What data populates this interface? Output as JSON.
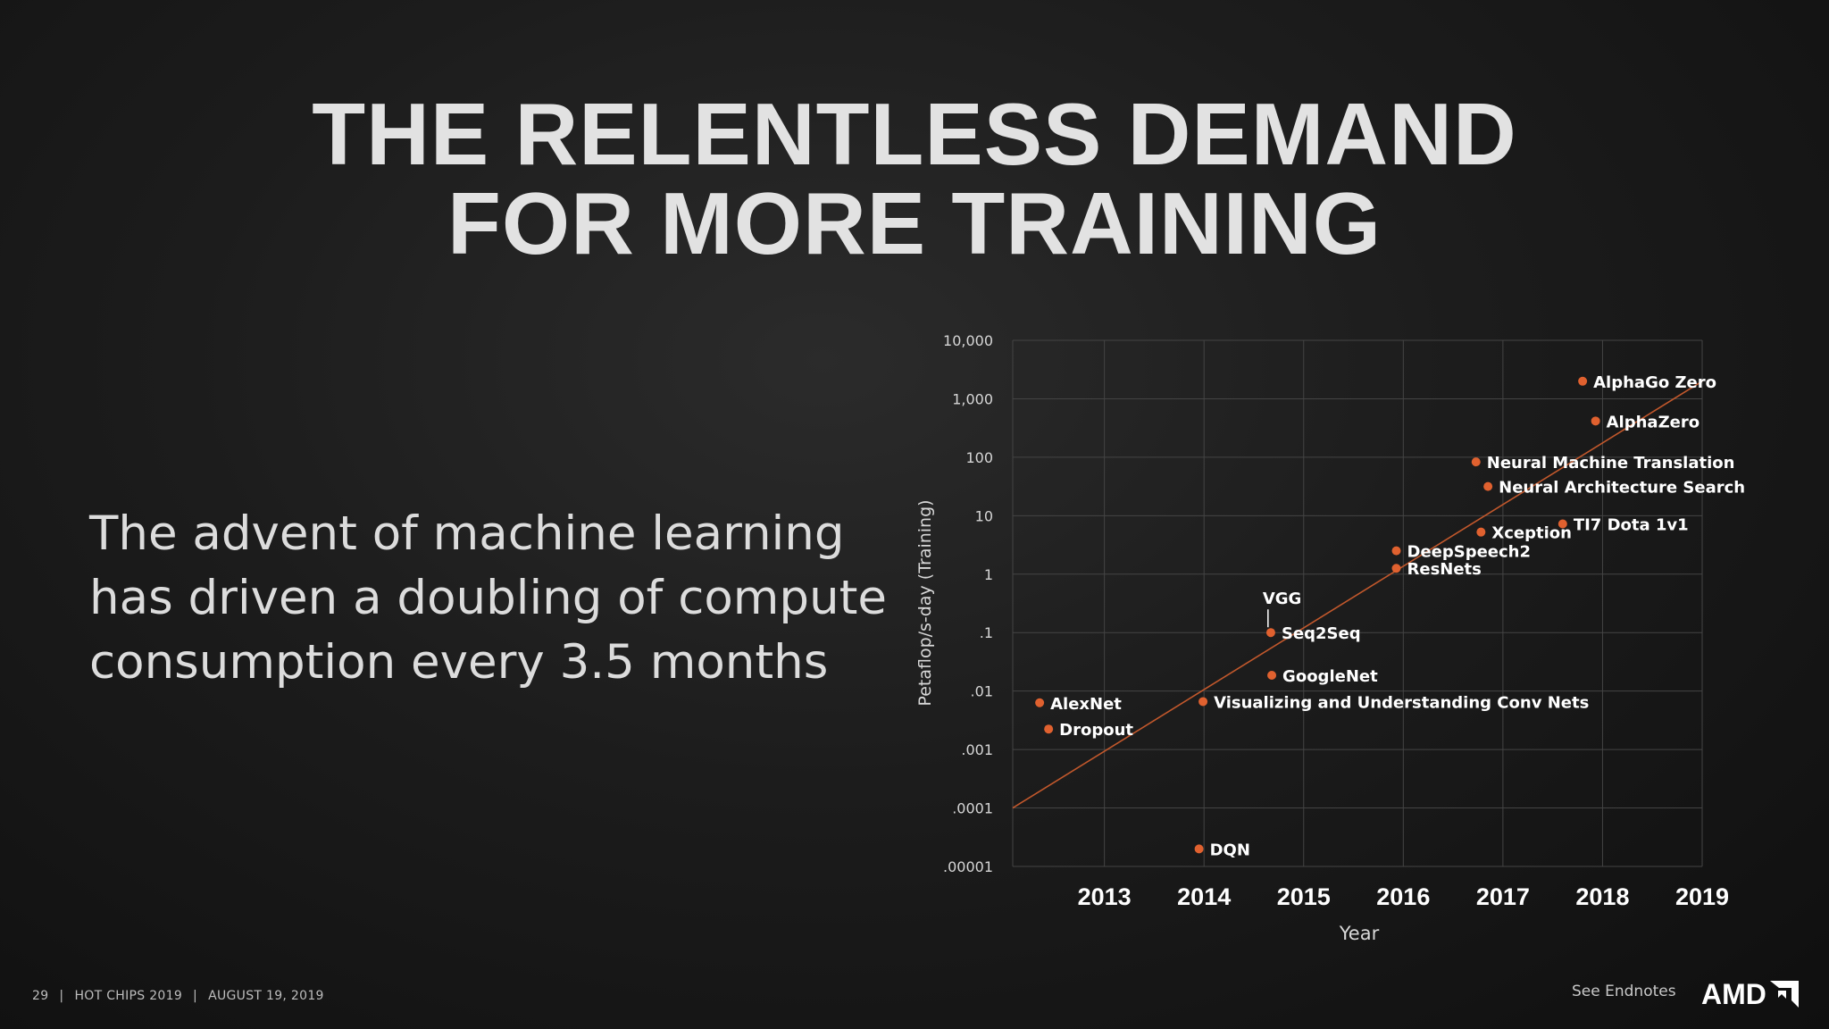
{
  "slide": {
    "title_line1": "THE RELENTLESS DEMAND",
    "title_line2": "FOR MORE TRAINING",
    "body_lines": [
      "The advent of machine learning",
      "has driven a doubling of compute",
      "consumption every 3.5 months"
    ]
  },
  "footer": {
    "page_number": "29",
    "event": "HOT CHIPS 2019",
    "date": "AUGUST 19, 2019",
    "separator": "|",
    "endnotes": "See Endnotes",
    "logo_text": "AMD"
  },
  "colors": {
    "point": "#e0612f",
    "trend": "#c2582c",
    "grid": "#444444",
    "title": "#e2e2e2"
  },
  "chart_data": {
    "type": "scatter",
    "title": "",
    "xlabel": "Year",
    "ylabel": "Petaflop/s-day (Training)",
    "y_scale": "log",
    "xlim": [
      2012.08,
      2019
    ],
    "ylim_exponent": [
      -5,
      4
    ],
    "x_ticks": [
      {
        "value": 2013,
        "label": "2013"
      },
      {
        "value": 2014,
        "label": "2014"
      },
      {
        "value": 2015,
        "label": "2015"
      },
      {
        "value": 2016,
        "label": "2016"
      },
      {
        "value": 2017,
        "label": "2017"
      },
      {
        "value": 2018,
        "label": "2018"
      },
      {
        "value": 2019,
        "label": "2019"
      }
    ],
    "y_ticks": [
      {
        "exp": 4,
        "label": "10,000"
      },
      {
        "exp": 3,
        "label": "1,000"
      },
      {
        "exp": 2,
        "label": "100"
      },
      {
        "exp": 1,
        "label": "10"
      },
      {
        "exp": 0,
        "label": "1"
      },
      {
        "exp": -1,
        "label": ".1"
      },
      {
        "exp": -2,
        "label": ".01"
      },
      {
        "exp": -3,
        "label": ".001"
      },
      {
        "exp": -4,
        "label": ".0001"
      },
      {
        "exp": -5,
        "label": ".00001"
      }
    ],
    "trend_line": {
      "x": [
        2012.08,
        2019
      ],
      "exp": [
        -4,
        3.3
      ]
    },
    "series": [
      {
        "name": "AlexNet",
        "x": 2012.35,
        "exp": -2.2
      },
      {
        "name": "Dropout",
        "x": 2012.44,
        "exp": -2.65
      },
      {
        "name": "DQN",
        "x": 2013.95,
        "exp": -4.7
      },
      {
        "name": "Visualizing and Understanding Conv Nets",
        "x": 2013.99,
        "exp": -2.18
      },
      {
        "name": "GoogleNet",
        "x": 2014.68,
        "exp": -1.73
      },
      {
        "name": "Seq2Seq",
        "x": 2014.67,
        "exp": -1.0
      },
      {
        "name": "DeepSpeech2",
        "x": 2015.93,
        "exp": 0.4
      },
      {
        "name": "ResNets",
        "x": 2015.93,
        "exp": 0.1
      },
      {
        "name": "Xception",
        "x": 2016.78,
        "exp": 0.72
      },
      {
        "name": "Neural Machine Translation",
        "x": 2016.73,
        "exp": 1.92
      },
      {
        "name": "Neural Architecture Search",
        "x": 2016.85,
        "exp": 1.5
      },
      {
        "name": "TI7 Dota 1v1",
        "x": 2017.6,
        "exp": 0.86
      },
      {
        "name": "AlphaGo Zero",
        "x": 2017.8,
        "exp": 3.3
      },
      {
        "name": "AlphaZero",
        "x": 2017.93,
        "exp": 2.62
      }
    ],
    "callouts": [
      {
        "name": "VGG",
        "x": 2014.66,
        "exp": -1.0
      }
    ]
  }
}
